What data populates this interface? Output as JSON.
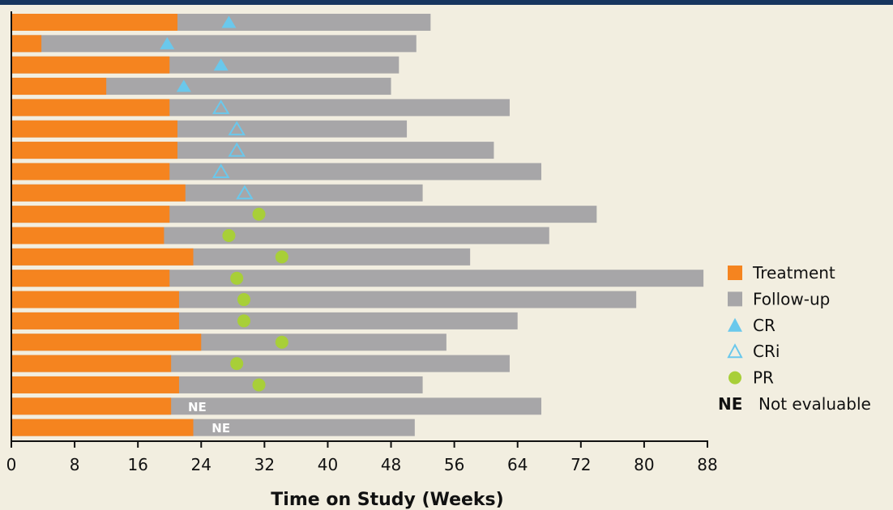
{
  "chart_data": {
    "type": "swimmer",
    "xlabel": "Time on Study (Weeks)",
    "xlim": [
      0,
      88
    ],
    "xticks": [
      0,
      8,
      16,
      24,
      32,
      40,
      48,
      56,
      64,
      72,
      80,
      88
    ],
    "legend_placement": "right",
    "colors": {
      "treatment": "#f5841f",
      "followup": "#a7a6a8",
      "cr": "#6ac8ec",
      "cri": "#6ac8ec",
      "pr": "#a8cf38",
      "ne_text": "#ffffff"
    },
    "legend": [
      {
        "key": "treatment",
        "symbol": "square-orange",
        "label": "Treatment"
      },
      {
        "key": "followup",
        "symbol": "square-gray",
        "label": "Follow-up"
      },
      {
        "key": "cr",
        "symbol": "filled-triangle",
        "label": "CR"
      },
      {
        "key": "cri",
        "symbol": "open-triangle",
        "label": "CRi"
      },
      {
        "key": "pr",
        "symbol": "filled-circle",
        "label": "PR"
      },
      {
        "key": "ne",
        "symbol": "NE",
        "label": "Not evaluable"
      }
    ],
    "patients": [
      {
        "treatment_end": 21,
        "total": 53,
        "response": "CR",
        "response_time": 27.5
      },
      {
        "treatment_end": 3.8,
        "total": 51.2,
        "response": "CR",
        "response_time": 19.7
      },
      {
        "treatment_end": 20,
        "total": 49,
        "response": "CR",
        "response_time": 26.5
      },
      {
        "treatment_end": 12,
        "total": 48,
        "response": "CR",
        "response_time": 21.8
      },
      {
        "treatment_end": 20,
        "total": 63,
        "response": "CRi",
        "response_time": 26.5
      },
      {
        "treatment_end": 21,
        "total": 50,
        "response": "CRi",
        "response_time": 28.5
      },
      {
        "treatment_end": 21,
        "total": 61,
        "response": "CRi",
        "response_time": 28.5
      },
      {
        "treatment_end": 20,
        "total": 67,
        "response": "CRi",
        "response_time": 26.5
      },
      {
        "treatment_end": 22,
        "total": 52,
        "response": "CRi",
        "response_time": 29.5
      },
      {
        "treatment_end": 20,
        "total": 74,
        "response": "PR",
        "response_time": 31.3
      },
      {
        "treatment_end": 19.3,
        "total": 68,
        "response": "PR",
        "response_time": 27.5
      },
      {
        "treatment_end": 23,
        "total": 58,
        "response": "PR",
        "response_time": 34.2
      },
      {
        "treatment_end": 20,
        "total": 87.5,
        "response": "PR",
        "response_time": 28.5
      },
      {
        "treatment_end": 21.2,
        "total": 79,
        "response": "PR",
        "response_time": 29.4
      },
      {
        "treatment_end": 21.2,
        "total": 64,
        "response": "PR",
        "response_time": 29.4
      },
      {
        "treatment_end": 24,
        "total": 55,
        "response": "PR",
        "response_time": 34.2
      },
      {
        "treatment_end": 20.2,
        "total": 63,
        "response": "PR",
        "response_time": 28.5
      },
      {
        "treatment_end": 21.2,
        "total": 52,
        "response": "PR",
        "response_time": 31.3
      },
      {
        "treatment_end": 20.2,
        "total": 67,
        "response": "NE",
        "response_time": 23.5
      },
      {
        "treatment_end": 23,
        "total": 51,
        "response": "NE",
        "response_time": 26.5
      }
    ],
    "ne_text": "NE"
  }
}
